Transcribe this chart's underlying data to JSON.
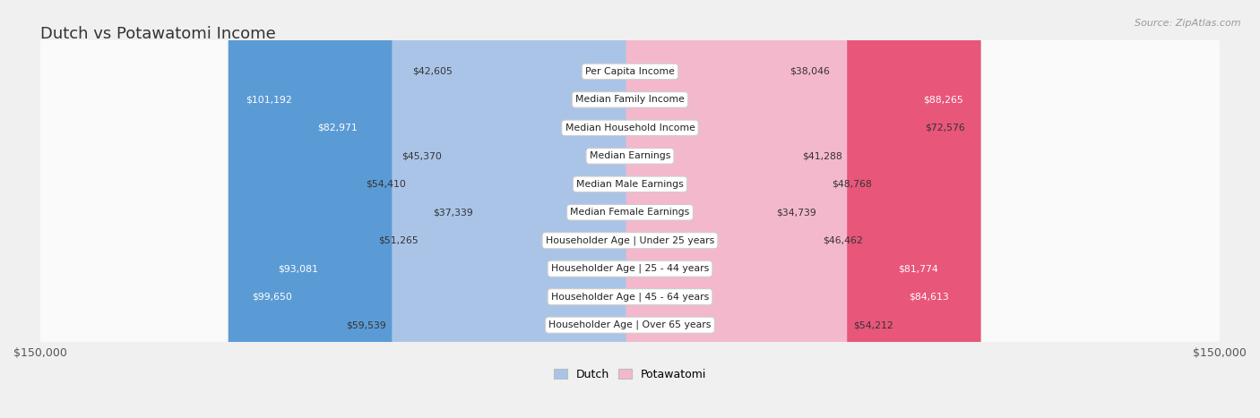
{
  "title": "Dutch vs Potawatomi Income",
  "source": "Source: ZipAtlas.com",
  "categories": [
    "Per Capita Income",
    "Median Family Income",
    "Median Household Income",
    "Median Earnings",
    "Median Male Earnings",
    "Median Female Earnings",
    "Householder Age | Under 25 years",
    "Householder Age | 25 - 44 years",
    "Householder Age | 45 - 64 years",
    "Householder Age | Over 65 years"
  ],
  "dutch_values": [
    42605,
    101192,
    82971,
    45370,
    54410,
    37339,
    51265,
    93081,
    99650,
    59539
  ],
  "potawatomi_values": [
    38046,
    88265,
    72576,
    41288,
    48768,
    34739,
    46462,
    81774,
    84613,
    54212
  ],
  "dutch_labels": [
    "$42,605",
    "$101,192",
    "$82,971",
    "$45,370",
    "$54,410",
    "$37,339",
    "$51,265",
    "$93,081",
    "$99,650",
    "$59,539"
  ],
  "potawatomi_labels": [
    "$38,046",
    "$88,265",
    "$72,576",
    "$41,288",
    "$48,768",
    "$34,739",
    "$46,462",
    "$81,774",
    "$84,613",
    "$54,212"
  ],
  "dutch_color_light": "#aac4e8",
  "dutch_color_dark": "#5b9bd5",
  "potawatomi_color_light": "#f4b8cc",
  "potawatomi_color_dark": "#e8567a",
  "max_value": 150000,
  "legend_dutch": "Dutch",
  "legend_potawatomi": "Potawatomi",
  "background_color": "#f0f0f0",
  "row_background": "#e8e8e8",
  "row_inner_background": "#fafafa"
}
